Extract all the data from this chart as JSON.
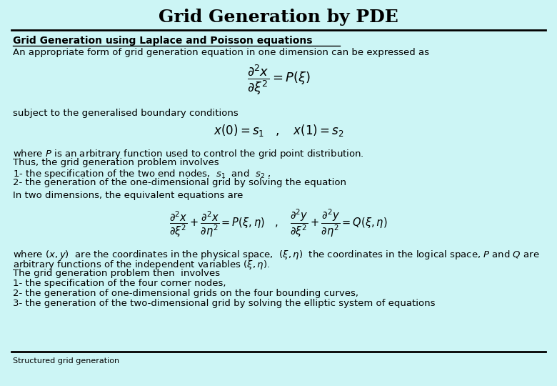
{
  "title": "Grid Generation by PDE",
  "bg_color": "#ccf5f5",
  "title_color": "#000000",
  "title_fontsize": 18,
  "footer_text": "Structured grid generation",
  "section_title": "Grid Generation using Laplace and Poisson equations",
  "line1": "An appropriate form of grid generation equation in one dimension can be expressed as",
  "eq1": "$\\dfrac{\\partial^2 x}{\\partial \\xi^2} = P(\\xi)$",
  "line2": "subject to the generalised boundary conditions",
  "eq2": "$x(0) = s_1 \\quad , \\quad x(1) = s_2$",
  "line3a": "where $P$ is an arbitrary function used to control the grid point distribution.",
  "line3b": "Thus, the grid generation problem involves",
  "line3c": "1- the specification of the two end nodes,  $s_1$  and  $s_2$ ,",
  "line3d": "2- the generation of the one-dimensional grid by solving the equation",
  "line4": "In two dimensions, the equivalent equations are",
  "eq3": "$\\dfrac{\\partial^2 x}{\\partial \\xi^2} + \\dfrac{\\partial^2 x}{\\partial \\eta^2} = P(\\xi,\\eta) \\quad , \\quad \\dfrac{\\partial^2 y}{\\partial \\xi^2} + \\dfrac{\\partial^2 y}{\\partial \\eta^2} = Q(\\xi,\\eta)$",
  "line5a": "where $(x,y)$  are the coordinates in the physical space,  $(\\xi,\\eta)$  the coordinates in the logical space, $P$ and $Q$ are",
  "line5b": "arbitrary functions of the independent variables $(\\xi,\\eta)$.",
  "line5c": "The grid generation problem then  involves",
  "line5d": "1- the specification of the four corner nodes,",
  "line5e": "2- the generation of one-dimensional grids on the four bounding curves,",
  "line5f": "3- the generation of the two-dimensional grid by solving the elliptic system of equations"
}
